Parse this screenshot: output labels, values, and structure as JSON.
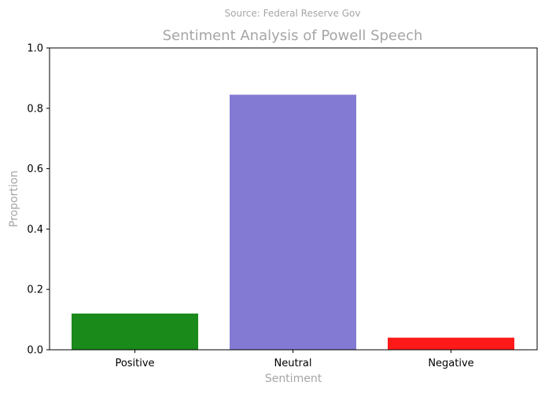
{
  "source": "Source: Federal Reserve Gov",
  "chart_data": {
    "type": "bar",
    "title": "Sentiment Analysis of Powell Speech",
    "xlabel": "Sentiment",
    "ylabel": "Proportion",
    "categories": [
      "Positive",
      "Neutral",
      "Negative"
    ],
    "values": [
      0.12,
      0.845,
      0.04
    ],
    "colors": [
      "#1a8a1a",
      "#837ad3",
      "#ff1a1a"
    ],
    "ylim": [
      0,
      1.0
    ],
    "yticks": [
      "0.0",
      "0.2",
      "0.4",
      "0.6",
      "0.8",
      "1.0"
    ],
    "grid": false,
    "legend": "none"
  }
}
